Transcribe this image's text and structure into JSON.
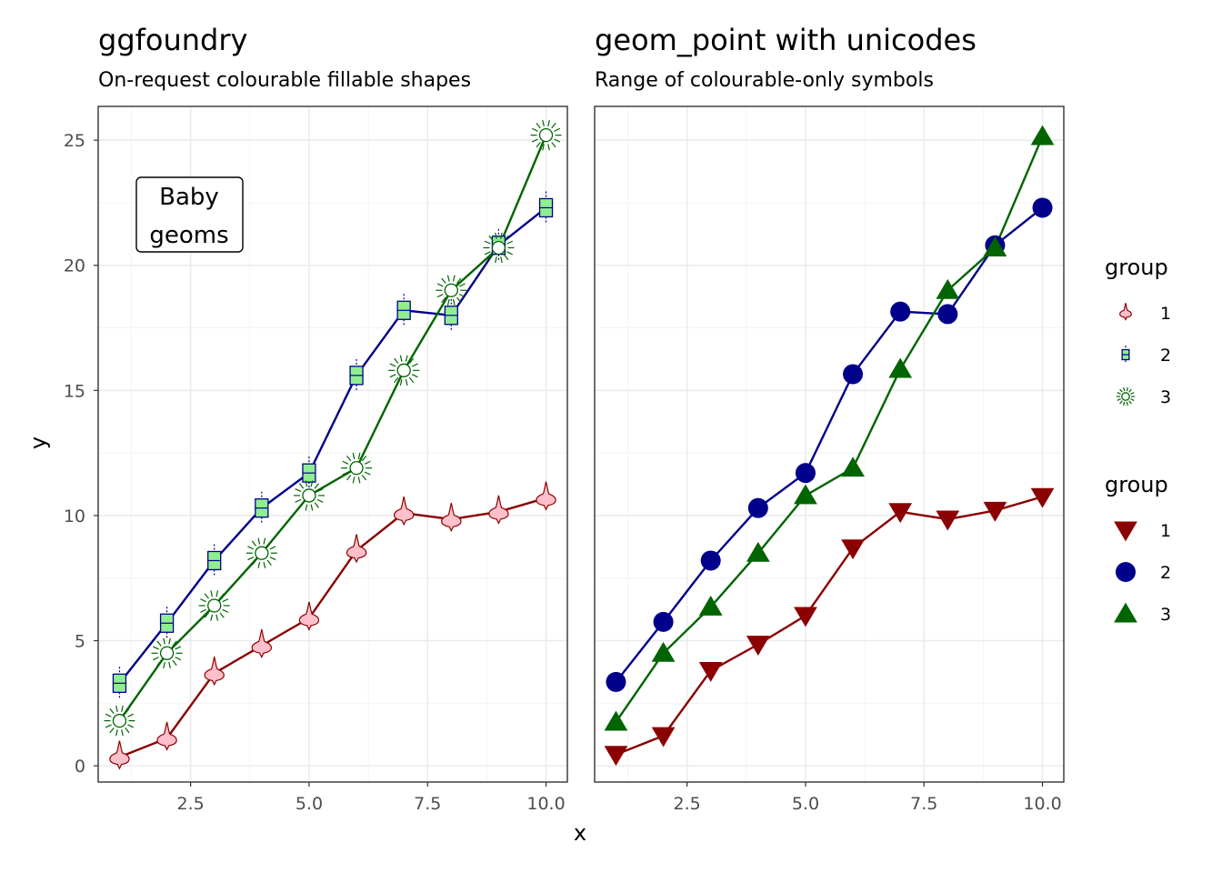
{
  "chart_data": [
    {
      "type": "line",
      "title": "ggfoundry",
      "subtitle": "On-request colourable fillable shapes",
      "xlabel": "x",
      "ylabel": "y",
      "x": [
        1,
        2,
        3,
        4,
        5,
        6,
        7,
        8,
        9,
        10
      ],
      "xlim": [
        0.55,
        10.45
      ],
      "ylim": [
        -0.65,
        26.35
      ],
      "x_ticks": [
        "2.5",
        "5.0",
        "7.5",
        "10.0"
      ],
      "y_ticks": [
        "0",
        "5",
        "10",
        "15",
        "20",
        "25"
      ],
      "grid": true,
      "annotation": [
        "Baby",
        "geoms"
      ],
      "series": [
        {
          "name": "1",
          "color": "#8b0000",
          "fill": "#ffc0cb",
          "shape": "violin",
          "values": [
            0.35,
            1.1,
            3.7,
            4.8,
            5.9,
            8.6,
            10.1,
            9.85,
            10.15,
            10.7
          ]
        },
        {
          "name": "2",
          "color": "#00008b",
          "fill": "#90ee90",
          "shape": "boxplot",
          "values": [
            3.3,
            5.7,
            8.2,
            10.3,
            11.7,
            15.6,
            18.2,
            18.0,
            20.8,
            22.3
          ]
        },
        {
          "name": "3",
          "color": "#006400",
          "fill": "#ffffff",
          "shape": "sunburst",
          "values": [
            1.8,
            4.5,
            6.4,
            8.5,
            10.8,
            11.9,
            15.8,
            19.0,
            20.7,
            25.2
          ]
        }
      ]
    },
    {
      "type": "line",
      "title": "geom_point with unicodes",
      "subtitle": "Range of colourable-only symbols",
      "xlabel": "x",
      "ylabel": "",
      "x": [
        1,
        2,
        3,
        4,
        5,
        6,
        7,
        8,
        9,
        10
      ],
      "xlim": [
        0.55,
        10.45
      ],
      "ylim": [
        -0.65,
        26.35
      ],
      "x_ticks": [
        "2.5",
        "5.0",
        "7.5",
        "10.0"
      ],
      "grid": true,
      "series": [
        {
          "name": "1",
          "color": "#8b0000",
          "shape": "triangle-down",
          "values": [
            0.45,
            1.2,
            3.8,
            4.85,
            6.0,
            8.7,
            10.15,
            9.85,
            10.2,
            10.75
          ]
        },
        {
          "name": "2",
          "color": "#00008b",
          "shape": "circle",
          "values": [
            3.35,
            5.75,
            8.2,
            10.3,
            11.7,
            15.65,
            18.15,
            18.05,
            20.8,
            22.3
          ]
        },
        {
          "name": "3",
          "color": "#006400",
          "shape": "triangle-up",
          "values": [
            1.75,
            4.5,
            6.35,
            8.5,
            10.8,
            11.9,
            15.85,
            19.0,
            20.7,
            25.15
          ]
        }
      ]
    }
  ],
  "legends": [
    {
      "title": "group",
      "entries": [
        "1",
        "2",
        "3"
      ],
      "shapes": [
        "violin",
        "boxplot",
        "sunburst"
      ]
    },
    {
      "title": "group",
      "entries": [
        "1",
        "2",
        "3"
      ],
      "shapes": [
        "triangle-down",
        "circle",
        "triangle-up"
      ]
    }
  ]
}
